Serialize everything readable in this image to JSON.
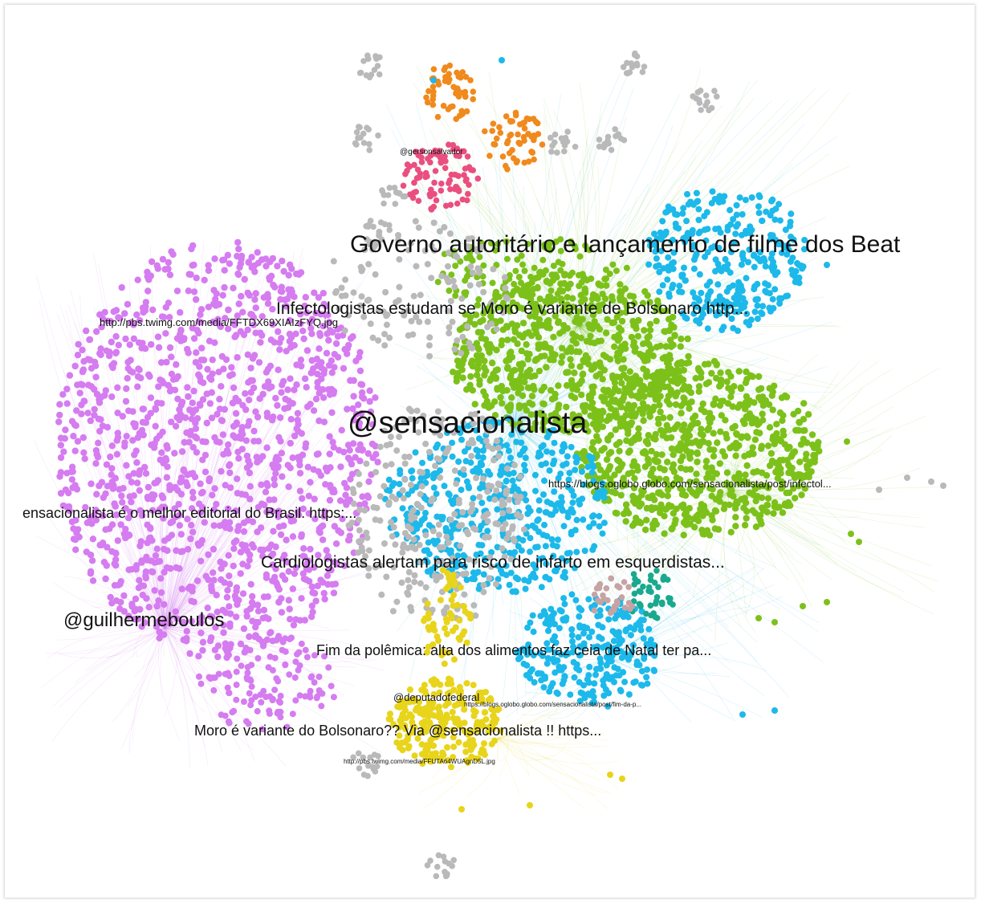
{
  "colors": {
    "violet": "#d57cf0",
    "green": "#7cc11a",
    "blue": "#1cb9ea",
    "grey": "#b9b9b9",
    "orange": "#f08a1c",
    "pink": "#ea4f80",
    "yellow": "#e8d41a",
    "teal": "#1aa98e",
    "rose": "#c7a3a3"
  },
  "labels": {
    "sensacionalista": "@sensacionalista",
    "governo": "Governo autoritário e lançamento de filme dos Beat",
    "infectologistas": "Infectologistas estudam se Moro é variante de Bolsonaro http...",
    "editorial": "ensacionalista é o melhor editorial do Brasil.  https:...",
    "cardiologistas": "Cardiologistas alertam para risco de infarto em esquerdistas...",
    "guilherme": "@guilhermeboulos",
    "polemica": "Fim da polêmica: alta dos alimentos faz ceia de Natal ter pa...",
    "moro": "Moro é variante do Bolsonaro?? Via @sensacionalista !! https...",
    "pbs1": "http://pbs.twimg.com/media/FFTDX69XIAIzFYQ.jpg",
    "blog1": "https://blogs.oglobo.globo.com/sensacionalista/post/infectol...",
    "gerson": "@gersonsalvador",
    "deputado": "@deputadofederal",
    "blog2": "https://blogs.oglobo.globo.com/sensacionalista/post/fim-da-p...",
    "pbs2": "http://pbs.twimg.com/media/FFUTA64WUAgnD5L.jpg"
  }
}
